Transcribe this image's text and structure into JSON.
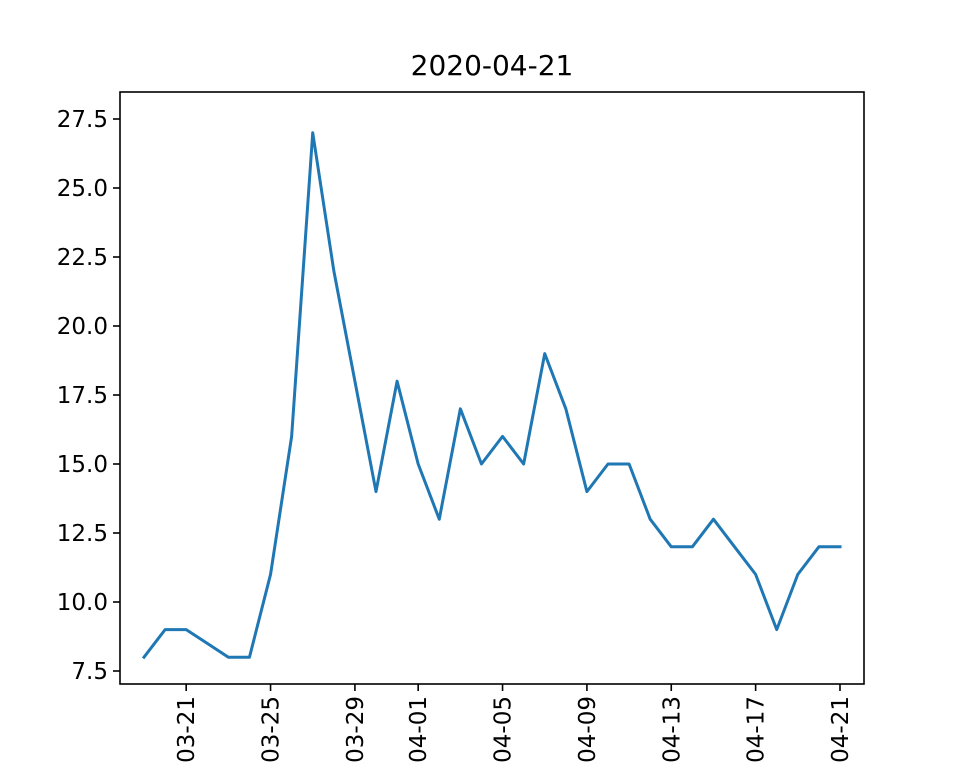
{
  "chart_data": {
    "type": "line",
    "title": "2020-04-21",
    "xlabel": "",
    "ylabel": "",
    "x_tick_labels": [
      "03-21",
      "03-25",
      "03-29",
      "04-01",
      "04-05",
      "04-09",
      "04-13",
      "04-17",
      "04-21"
    ],
    "x_ticks": [
      "2020-03-21",
      "2020-03-25",
      "2020-03-29",
      "2020-04-01",
      "2020-04-05",
      "2020-04-09",
      "2020-04-13",
      "2020-04-17",
      "2020-04-21"
    ],
    "y_tick_labels": [
      "7.5",
      "10.0",
      "12.5",
      "15.0",
      "17.5",
      "20.0",
      "22.5",
      "25.0",
      "27.5"
    ],
    "y_ticks": [
      7.5,
      10.0,
      12.5,
      15.0,
      17.5,
      20.0,
      22.5,
      25.0,
      27.5
    ],
    "ylim": [
      7.5,
      27.5
    ],
    "xlim": [
      "2020-03-19",
      "2020-04-22"
    ],
    "grid": false,
    "legend": "none",
    "series": [
      {
        "color": "#1f77b4",
        "x": [
          "2020-03-19",
          "2020-03-20",
          "2020-03-21",
          "2020-03-22",
          "2020-03-23",
          "2020-03-24",
          "2020-03-25",
          "2020-03-26",
          "2020-03-27",
          "2020-03-28",
          "2020-03-29",
          "2020-03-30",
          "2020-03-31",
          "2020-04-01",
          "2020-04-02",
          "2020-04-03",
          "2020-04-04",
          "2020-04-05",
          "2020-04-06",
          "2020-04-07",
          "2020-04-08",
          "2020-04-09",
          "2020-04-10",
          "2020-04-11",
          "2020-04-12",
          "2020-04-13",
          "2020-04-14",
          "2020-04-15",
          "2020-04-16",
          "2020-04-17",
          "2020-04-18",
          "2020-04-19",
          "2020-04-20",
          "2020-04-21"
        ],
        "values": [
          8,
          9,
          9,
          8.5,
          8,
          8,
          11,
          16,
          27,
          22,
          18,
          14,
          18,
          15,
          13,
          17,
          15,
          16,
          15,
          19,
          17,
          14,
          15,
          15,
          13,
          12,
          12,
          13,
          12,
          11,
          9,
          11,
          12,
          12
        ]
      }
    ]
  }
}
